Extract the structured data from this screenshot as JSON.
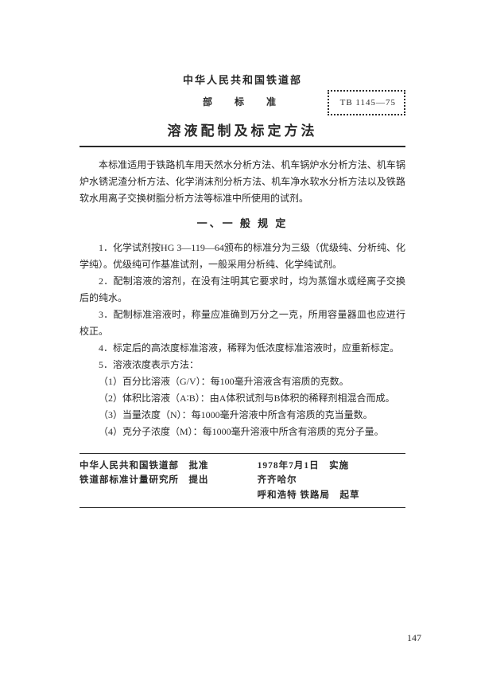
{
  "header": {
    "organization": "中华人民共和国铁道部",
    "subheading": "部　标　准",
    "code": "TB 1145—75",
    "title": "溶液配制及标定方法"
  },
  "intro": "本标准适用于铁路机车用天然水分析方法、机车锅炉水分析方法、机车锅炉水锈泥渣分析方法、化学消沫剂分析方法、机车净水软水分析方法以及铁路软水用离子交换树脂分析方法等标准中所使用的试剂。",
  "section1": {
    "heading": "一、一 般 规 定",
    "items": [
      "1．化学试剂按HG 3—119—64颁布的标准分为三级（优级纯、分析纯、化学纯）。优级纯可作基准试剂，一般采用分析纯、化学纯试剂。",
      "2．配制溶液的溶剂，在没有注明其它要求时，均为蒸馏水或经离子交换后的纯水。",
      "3．配制标准溶液时，称量应准确到万分之一克，所用容量器皿也应进行校正。",
      "4．标定后的高浓度标准溶液，稀释为低浓度标准溶液时，应重新标定。",
      "5．溶液浓度表示方法：",
      "（1）百分比溶液（G/V）：每100毫升溶液含有溶质的克数。",
      "（2）体积比溶液（A∶B）：由A体积试剂与B体积的稀释剂相混合而成。",
      "（3）当量浓度（N）：每1000毫升溶液中所含有溶质的克当量数。",
      "（4）克分子浓度（M）：每1000毫升溶液中所含有溶质的克分子量。"
    ]
  },
  "footer": {
    "left1": "中华人民共和国铁道部　批准",
    "left2": "铁道部标准计量研究所　提出",
    "right1": "1978年7月1日　实施",
    "right2a": "齐齐哈尔",
    "right2b": "呼和浩特",
    "right2c": "铁路局　起草"
  },
  "page_number": "147",
  "colors": {
    "text": "#2a2a2a",
    "background": "#ffffff"
  }
}
